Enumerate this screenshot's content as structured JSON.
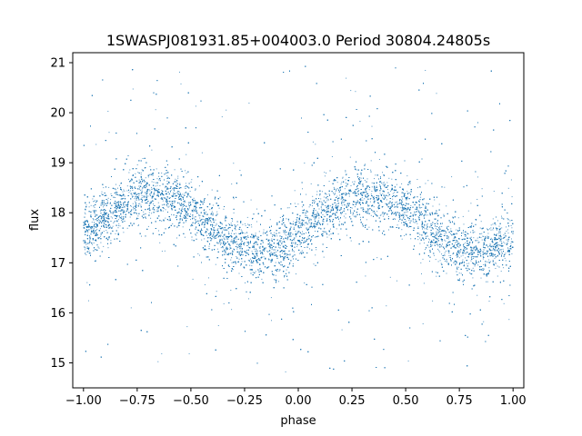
{
  "chart_data": {
    "type": "scatter",
    "title": "1SWASPJ081931.85+004003.0 Period 30804.24805s",
    "xlabel": "phase",
    "ylabel": "flux",
    "xlim": [
      -1.05,
      1.05
    ],
    "ylim": [
      14.5,
      21.2
    ],
    "xticks": [
      -1.0,
      -0.75,
      -0.5,
      -0.25,
      0.0,
      0.25,
      0.5,
      0.75,
      1.0
    ],
    "xtick_labels": [
      "−1.00",
      "−0.75",
      "−0.50",
      "−0.25",
      "0.00",
      "0.25",
      "0.50",
      "0.75",
      "1.00"
    ],
    "yticks": [
      15,
      16,
      17,
      18,
      19,
      20,
      21
    ],
    "ytick_labels": [
      "15",
      "16",
      "17",
      "18",
      "19",
      "20",
      "21"
    ],
    "grid": false,
    "series": [
      {
        "color": "#1f77b4",
        "marker_size": "tiny",
        "model": "sinusoid",
        "phase_range": [
          -1.0,
          1.0
        ],
        "mean_flux": 17.8,
        "amplitude": 0.58,
        "peak_phase": [
          -0.68,
          0.32
        ],
        "trough_phase": [
          -0.18,
          0.82
        ],
        "approx_points": 30000,
        "core_scatter_std": 0.28,
        "outlier_flux_range": [
          14.8,
          21.0
        ]
      }
    ]
  }
}
